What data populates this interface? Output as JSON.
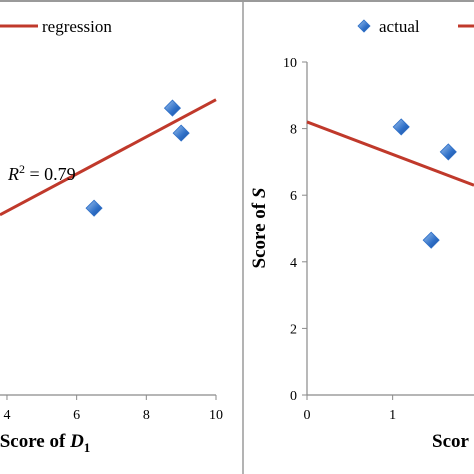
{
  "colors": {
    "regression": "#c0392b",
    "marker": "#2e6fc7",
    "marker_light": "#9fc4f0",
    "axis": "#8a8a8a",
    "frame": "#9a9a9a"
  },
  "chart_data": [
    {
      "type": "scatter",
      "legend": {
        "regression_label": "regression",
        "placement": "top"
      },
      "xlabel_prefix": "Score of ",
      "xlabel_var": "D",
      "xlabel_sub": "1",
      "ylabel": "",
      "annotation": {
        "prefix": "R",
        "sup": "2",
        "rest": " = 0.79"
      },
      "xlim": [
        3.8,
        10
      ],
      "ylim": [
        -0.5,
        10.5
      ],
      "x_ticks": [
        4,
        6,
        8,
        10
      ],
      "y_ticks": [],
      "series": [
        {
          "name": "actual",
          "marker": "diamond",
          "points": [
            {
              "x": 6.5,
              "y": 5.1
            },
            {
              "x": 8.75,
              "y": 8.1
            },
            {
              "x": 9.0,
              "y": 7.35
            }
          ]
        },
        {
          "name": "regression",
          "line": [
            {
              "x": 3.8,
              "y": 4.9
            },
            {
              "x": 10.0,
              "y": 8.35
            }
          ]
        }
      ]
    },
    {
      "type": "scatter",
      "legend": {
        "actual_label": "actual",
        "placement": "top"
      },
      "xlabel_prefix": "Scor",
      "xlabel_var": "",
      "xlabel_sub": "",
      "ylabel_prefix": "Score of ",
      "ylabel_var": "S",
      "xlim": [
        0,
        1.95
      ],
      "ylim": [
        0,
        10
      ],
      "x_ticks": [
        0,
        1
      ],
      "y_ticks": [
        0,
        2,
        4,
        6,
        8,
        10
      ],
      "series": [
        {
          "name": "actual",
          "marker": "diamond",
          "points": [
            {
              "x": 1.1,
              "y": 8.05
            },
            {
              "x": 1.45,
              "y": 4.65
            },
            {
              "x": 1.65,
              "y": 7.3
            }
          ]
        },
        {
          "name": "regression",
          "line": [
            {
              "x": 0,
              "y": 8.2
            },
            {
              "x": 1.95,
              "y": 6.3
            }
          ]
        }
      ]
    }
  ]
}
